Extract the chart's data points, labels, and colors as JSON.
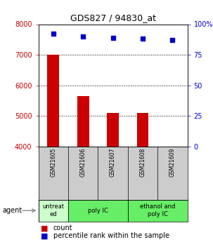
{
  "title": "GDS827 / 94830_at",
  "samples": [
    "GSM21605",
    "GSM21606",
    "GSM21607",
    "GSM21608",
    "GSM21609"
  ],
  "bar_values": [
    7000,
    5650,
    5100,
    5100,
    4000
  ],
  "bar_bottom": 4000,
  "percentile_values": [
    92,
    90,
    89,
    88,
    87
  ],
  "bar_color": "#cc0000",
  "percentile_color": "#0000cc",
  "ylim_left": [
    4000,
    8000
  ],
  "ylim_right": [
    0,
    100
  ],
  "yticks_left": [
    4000,
    5000,
    6000,
    7000,
    8000
  ],
  "yticks_right": [
    0,
    25,
    50,
    75,
    100
  ],
  "ytick_labels_right": [
    "0",
    "25",
    "50",
    "75",
    "100%"
  ],
  "agent_groups": [
    {
      "label": "untreat\ned",
      "start": 0,
      "end": 1,
      "color": "#ccffcc"
    },
    {
      "label": "poly IC",
      "start": 1,
      "end": 3,
      "color": "#66ee66"
    },
    {
      "label": "ethanol and\npoly IC",
      "start": 3,
      "end": 5,
      "color": "#66ee66"
    }
  ],
  "agent_label": "agent",
  "legend_count_label": "count",
  "legend_pct_label": "percentile rank within the sample",
  "background_color": "#ffffff",
  "sample_box_color": "#cccccc",
  "bar_width": 0.4
}
